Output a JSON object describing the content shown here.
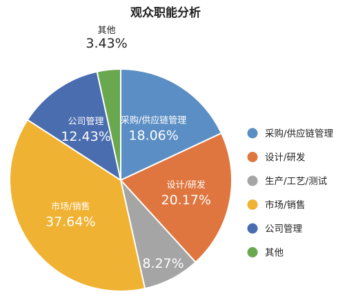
{
  "chart_data": {
    "type": "pie",
    "title": "观众职能分析",
    "categories": [
      "采购/供应链管理",
      "设计/研发",
      "生产/工艺/测试",
      "市场/销售",
      "公司管理",
      "其他"
    ],
    "values": [
      18.06,
      20.17,
      8.27,
      37.64,
      12.43,
      3.43
    ],
    "value_labels": [
      "18.06%",
      "20.17%",
      "8.27%",
      "37.64%",
      "12.43%",
      "3.43%"
    ],
    "colors": [
      "#5b8ec4",
      "#e0763f",
      "#a5a5a5",
      "#f0b232",
      "#4a6db0",
      "#6aa84f"
    ],
    "legend": {
      "position": "right",
      "entries": [
        "采购/供应链管理",
        "设计/研发",
        "生产/工艺/测试",
        "市场/销售",
        "公司管理",
        "其他"
      ]
    }
  }
}
